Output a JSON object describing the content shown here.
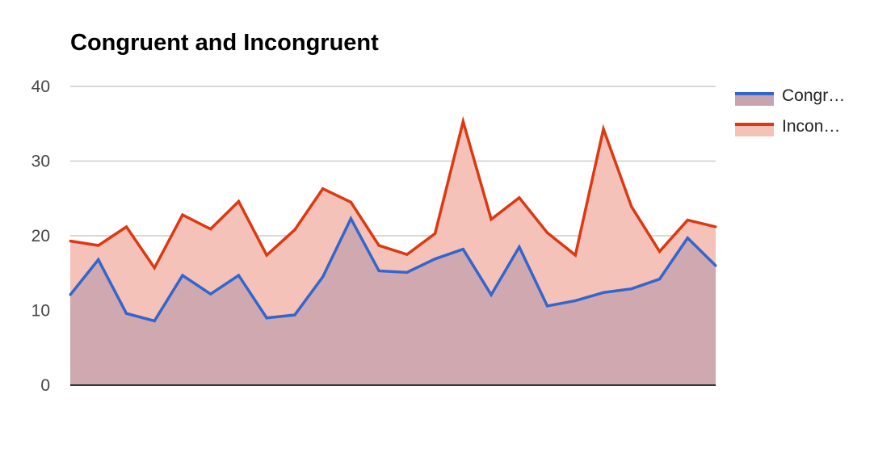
{
  "chart_data": {
    "type": "area",
    "title": "Congruent and Incongruent",
    "xlabel": "",
    "ylabel": "",
    "ylim": [
      0,
      40
    ],
    "yticks": [
      "0",
      "10",
      "20",
      "30",
      "40"
    ],
    "grid": true,
    "legend_position": "right",
    "series": [
      {
        "name": "Congr…",
        "color": "#3366cc",
        "fill": "#c9a3ad",
        "values": [
          12.1,
          16.8,
          9.6,
          8.6,
          14.7,
          12.2,
          14.7,
          9.0,
          9.4,
          14.5,
          22.3,
          15.3,
          15.1,
          16.9,
          18.2,
          12.1,
          18.5,
          10.6,
          11.3,
          12.4,
          12.9,
          14.2,
          19.7,
          16.0
        ]
      },
      {
        "name": "Incon…",
        "color": "#dc3912",
        "fill": "#f4c2b8",
        "values": [
          19.3,
          18.7,
          21.2,
          15.7,
          22.8,
          20.9,
          24.6,
          17.4,
          20.8,
          26.3,
          24.5,
          18.7,
          17.5,
          20.3,
          35.3,
          22.2,
          25.1,
          20.4,
          17.4,
          34.3,
          23.9,
          17.9,
          22.1,
          21.2
        ]
      }
    ]
  }
}
